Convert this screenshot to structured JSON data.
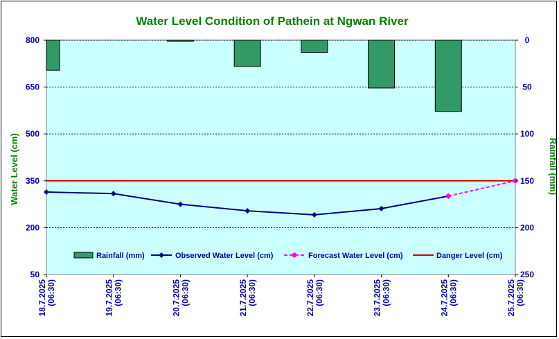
{
  "chart_data": {
    "type": "line",
    "title": "Water Level Condition of Pathein  at Ngwan River",
    "ylabel": "Water Level (cm)",
    "y2label": "Rainfall (mm)",
    "ylim": [
      50,
      800
    ],
    "yticks": [
      50,
      200,
      350,
      500,
      650,
      800
    ],
    "y2lim": [
      0,
      250
    ],
    "y2ticks": [
      0,
      50,
      100,
      150,
      200,
      250
    ],
    "y2_inverted": true,
    "grid": true,
    "legend_position": "bottom-inside",
    "categories": [
      [
        "18.7.2025",
        "(06:30)"
      ],
      [
        "19.7.2025",
        "(06:30)"
      ],
      [
        "20.7.2025",
        "(06:30)"
      ],
      [
        "21.7.2025",
        "(06:30)"
      ],
      [
        "22.7.2025",
        "(06:30)"
      ],
      [
        "23.7.2025",
        "(06:30)"
      ],
      [
        "24.7.2025",
        "(06:30)"
      ],
      [
        "25.7.2025",
        "(06:30)"
      ]
    ],
    "series": [
      {
        "name": "Rainfall (mm)",
        "type": "bar",
        "axis": "right",
        "color": "#339966",
        "values": [
          32,
          null,
          1,
          28,
          13,
          51,
          76,
          null
        ]
      },
      {
        "name": "Observed Water Level (cm)",
        "type": "line",
        "axis": "left",
        "color": "#000080",
        "values": [
          314,
          309,
          275,
          254,
          241,
          261,
          301,
          null
        ]
      },
      {
        "name": "Forecast Water Level (cm)",
        "type": "line-dashed",
        "axis": "left",
        "color": "#ff00ff",
        "values": [
          null,
          null,
          null,
          null,
          null,
          null,
          301,
          350
        ]
      },
      {
        "name": "Danger Level (cm)",
        "type": "hline",
        "axis": "left",
        "color": "#cc0000",
        "values": [
          350,
          350,
          350,
          350,
          350,
          350,
          350,
          350
        ]
      }
    ]
  },
  "colors": {
    "plot_background": "#ccffff",
    "title": "#008000",
    "tick_text": "#0000a0"
  }
}
